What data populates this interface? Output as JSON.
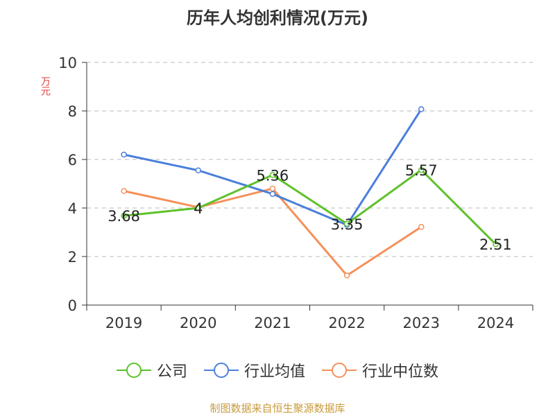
{
  "chart_data": {
    "type": "line",
    "title": "历年人均创利情况(万元)",
    "ylabel": "万元",
    "xlabel": "",
    "categories": [
      "2019",
      "2020",
      "2021",
      "2022",
      "2023",
      "2024"
    ],
    "ylim": [
      0,
      10
    ],
    "yticks": [
      0,
      2,
      4,
      6,
      8,
      10
    ],
    "grid": true,
    "legend_position": "bottom",
    "series": [
      {
        "name": "公司",
        "color": "#5ec12a",
        "values": [
          3.68,
          4,
          5.36,
          3.35,
          5.57,
          2.51
        ],
        "labels": [
          "3.68",
          "4",
          "5.36",
          "3.35",
          "5.57",
          "2.51"
        ]
      },
      {
        "name": "行业均值",
        "color": "#4a7fdb",
        "values": [
          6.2,
          5.55,
          4.58,
          3.3,
          8.07,
          null
        ]
      },
      {
        "name": "行业中位数",
        "color": "#f5905a",
        "values": [
          4.7,
          4.03,
          4.8,
          1.22,
          3.22,
          null
        ]
      }
    ]
  },
  "source": "制图数据来自恒生聚源数据库"
}
